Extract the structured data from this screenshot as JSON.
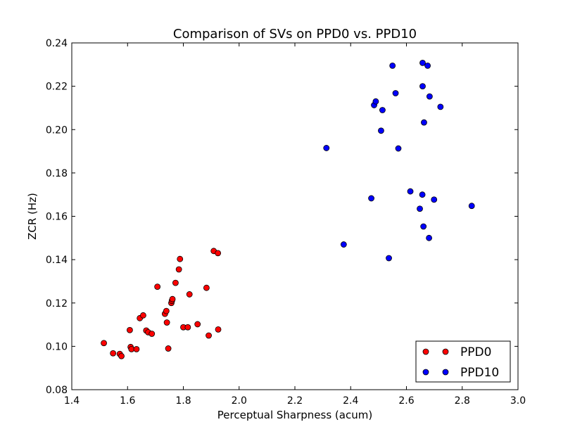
{
  "chart_data": {
    "type": "scatter",
    "title": "Comparison of SVs on PPD0 vs. PPD10",
    "xlabel": "Perceptual Sharpness (acum)",
    "ylabel": "ZCR (Hz)",
    "xlim": [
      1.4,
      3.0
    ],
    "ylim": [
      0.08,
      0.24
    ],
    "xticks": [
      "1.4",
      "1.6",
      "1.8",
      "2.0",
      "2.2",
      "2.4",
      "2.6",
      "2.8",
      "3.0"
    ],
    "yticks": [
      "0.08",
      "0.10",
      "0.12",
      "0.14",
      "0.16",
      "0.18",
      "0.20",
      "0.22",
      "0.24"
    ],
    "grid": false,
    "legend_position": "bottom-right",
    "series": [
      {
        "name": "PPD0",
        "color": "#ff0000",
        "points": [
          [
            1.515,
            0.1015
          ],
          [
            1.548,
            0.0968
          ],
          [
            1.572,
            0.0965
          ],
          [
            1.578,
            0.0955
          ],
          [
            1.608,
            0.1075
          ],
          [
            1.611,
            0.0997
          ],
          [
            1.614,
            0.0987
          ],
          [
            1.632,
            0.0987
          ],
          [
            1.644,
            0.113
          ],
          [
            1.656,
            0.1143
          ],
          [
            1.667,
            0.1073
          ],
          [
            1.674,
            0.1065
          ],
          [
            1.687,
            0.1058
          ],
          [
            1.707,
            0.1275
          ],
          [
            1.734,
            0.115
          ],
          [
            1.739,
            0.1163
          ],
          [
            1.741,
            0.111
          ],
          [
            1.746,
            0.099
          ],
          [
            1.757,
            0.12
          ],
          [
            1.759,
            0.121
          ],
          [
            1.761,
            0.1218
          ],
          [
            1.772,
            0.1293
          ],
          [
            1.784,
            0.1355
          ],
          [
            1.788,
            0.1403
          ],
          [
            1.8,
            0.1088
          ],
          [
            1.816,
            0.1088
          ],
          [
            1.822,
            0.124
          ],
          [
            1.851,
            0.1102
          ],
          [
            1.883,
            0.127
          ],
          [
            1.891,
            0.105
          ],
          [
            1.909,
            0.144
          ],
          [
            1.924,
            0.143
          ],
          [
            1.925,
            0.1078
          ]
        ]
      },
      {
        "name": "PPD10",
        "color": "#0000ff",
        "points": [
          [
            2.313,
            0.1915
          ],
          [
            2.375,
            0.147
          ],
          [
            2.474,
            0.1683
          ],
          [
            2.484,
            0.2113
          ],
          [
            2.49,
            0.213
          ],
          [
            2.509,
            0.1995
          ],
          [
            2.514,
            0.209
          ],
          [
            2.537,
            0.1407
          ],
          [
            2.55,
            0.2295
          ],
          [
            2.561,
            0.2168
          ],
          [
            2.571,
            0.1913
          ],
          [
            2.614,
            0.1715
          ],
          [
            2.648,
            0.1635
          ],
          [
            2.657,
            0.17
          ],
          [
            2.658,
            0.22
          ],
          [
            2.658,
            0.2308
          ],
          [
            2.661,
            0.1553
          ],
          [
            2.663,
            0.2033
          ],
          [
            2.676,
            0.2295
          ],
          [
            2.681,
            0.15
          ],
          [
            2.683,
            0.2153
          ],
          [
            2.699,
            0.1677
          ],
          [
            2.722,
            0.2105
          ],
          [
            2.834,
            0.1648
          ]
        ]
      }
    ]
  }
}
